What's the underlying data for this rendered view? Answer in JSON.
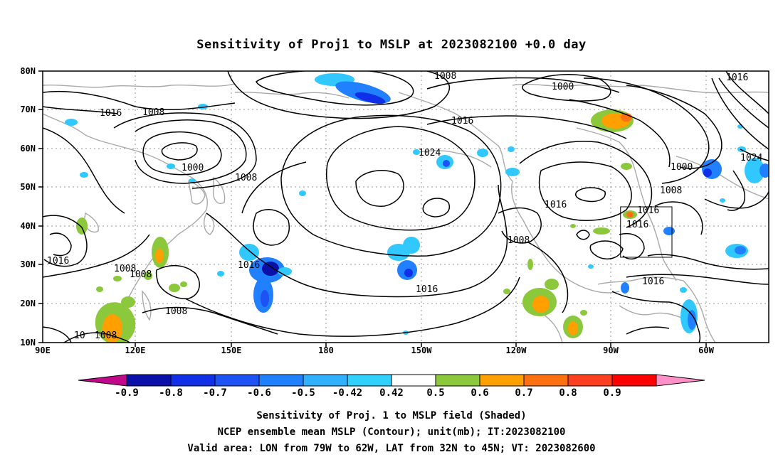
{
  "title": "Sensitivity of Proj1 to MSLP at 2023082100 +0.0 day",
  "map": {
    "lat_labels": [
      "80N",
      "70N",
      "60N",
      "50N",
      "40N",
      "30N",
      "20N",
      "10N"
    ],
    "lon_labels": [
      "90E",
      "120E",
      "150E",
      "180",
      "150W",
      "120W",
      "90W",
      "60W"
    ],
    "valid_area_box": {
      "lon_min": -79,
      "lon_max": -62,
      "lat_min": 32,
      "lat_max": 45
    },
    "contour_labels": [
      "1008",
      "1016",
      "1008",
      "1016",
      "1000",
      "1024",
      "1008",
      "1016",
      "1016",
      "1008",
      "1016",
      "1016",
      "1008",
      "1008",
      "1016",
      "1008",
      "1016",
      "1024",
      "1000",
      "1008",
      "1016",
      "1016",
      "1000",
      "1008",
      "10"
    ],
    "colors": {
      "contour": "#000000",
      "coastline": "#a9a9a9",
      "grid": "#9a9a9a"
    }
  },
  "colorbar": {
    "levels": [
      "-0.9",
      "-0.8",
      "-0.7",
      "-0.6",
      "-0.5",
      "-0.42",
      "0.42",
      "0.5",
      "0.6",
      "0.7",
      "0.8",
      "0.9"
    ],
    "colors": [
      "#c0088a",
      "#0a10a8",
      "#1030e8",
      "#1d52f5",
      "#2080ff",
      "#30b0ff",
      "#30d0ff",
      "#ffffff",
      "#8cc83c",
      "#ffa000",
      "#ff7010",
      "#ff4020",
      "#ff0000",
      "#ff90c8"
    ]
  },
  "captions": [
    "Sensitivity of Proj. 1 to MSLP field (Shaded)",
    "NCEP ensemble mean MSLP (Contour); unit(mb); IT:2023082100",
    "Valid area: LON from 79W to 62W, LAT from 32N to 45N; VT: 2023082600"
  ]
}
